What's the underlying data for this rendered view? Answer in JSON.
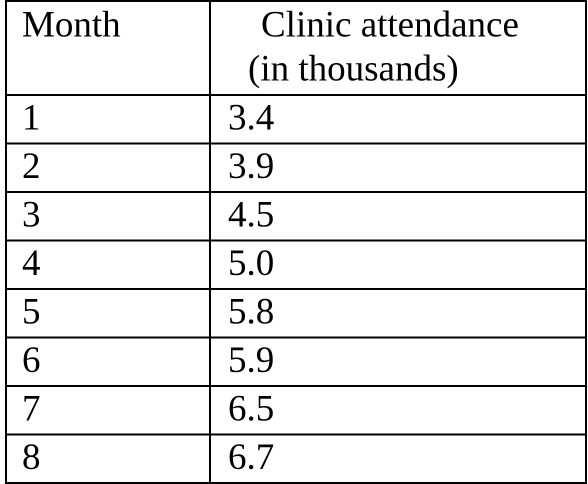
{
  "table": {
    "header": [
      "Month",
      [
        "Clinic attendance",
        "(in thousands)"
      ]
    ],
    "rows": [
      [
        "1",
        "3.4"
      ],
      [
        "2",
        "3.9"
      ],
      [
        "3",
        "4.5"
      ],
      [
        "4",
        "5.0"
      ],
      [
        "5",
        "5.8"
      ],
      [
        "6",
        "5.9"
      ],
      [
        "7",
        "6.5"
      ],
      [
        "8",
        "6.7"
      ]
    ]
  }
}
